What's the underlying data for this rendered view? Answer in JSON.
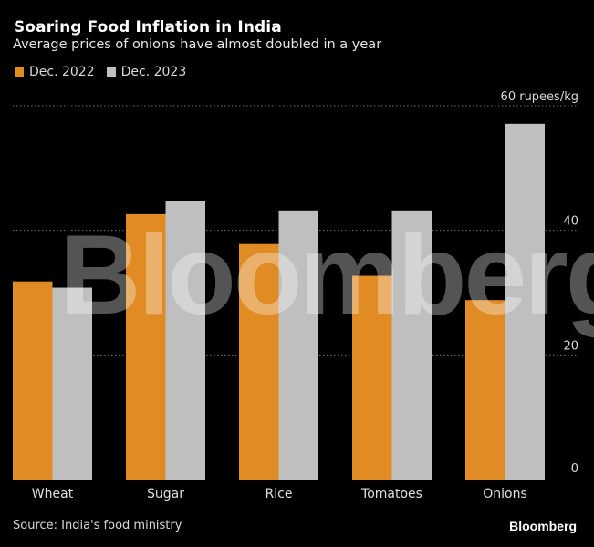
{
  "chart_data": {
    "type": "bar",
    "title": "Soaring Food Inflation in India",
    "subtitle": "Average prices of onions have almost doubled in a year",
    "categories": [
      "Wheat",
      "Sugar",
      "Rice",
      "Tomatoes",
      "Onions"
    ],
    "series": [
      {
        "name": "Dec. 2022",
        "color": "#e08b24",
        "values": [
          31.8,
          42.6,
          37.8,
          32.7,
          28.8
        ]
      },
      {
        "name": "Dec. 2023",
        "color": "#bfbfbf",
        "values": [
          30.8,
          44.7,
          43.2,
          43.2,
          57.1
        ]
      }
    ],
    "ylim": [
      0,
      60
    ],
    "yticks": [
      {
        "value": 0,
        "label": "0"
      },
      {
        "value": 20,
        "label": "20"
      },
      {
        "value": 40,
        "label": "40"
      },
      {
        "value": 60,
        "label": "60 rupees/kg"
      }
    ],
    "ylabel": "rupees/kg",
    "xlabel": "",
    "grid": true,
    "legend_position": "top-left",
    "y_axis_side": "right"
  },
  "footer": {
    "source": "Source: India's food ministry",
    "brand": "Bloomberg"
  },
  "watermark": "Bloomberg"
}
